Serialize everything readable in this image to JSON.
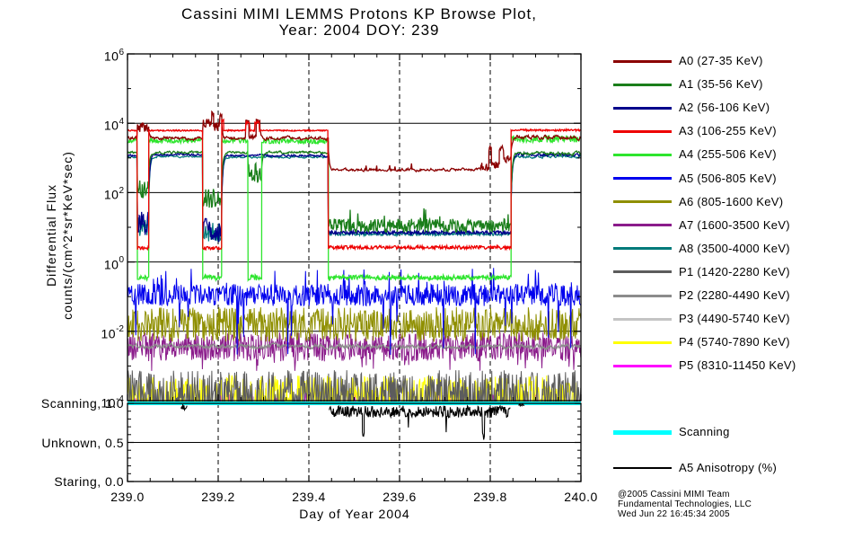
{
  "title": {
    "line1": "Cassini MIMI LEMMS Protons KP Browse Plot,",
    "line2": "Year: 2004 DOY: 239"
  },
  "axes": {
    "x": {
      "label": "Day of Year 2004",
      "tick_labels": [
        "239.0",
        "239.2",
        "239.4",
        "239.6",
        "239.8",
        "240.0"
      ],
      "tick_values": [
        239.0,
        239.2,
        239.4,
        239.6,
        239.8,
        240.0
      ],
      "minor_step": 0.05,
      "range": [
        239.0,
        240.0
      ]
    },
    "y": {
      "label_line1": "Differential Flux",
      "label_line2": "counts/(cm^2*sr*KeV*sec)",
      "major_exponents": [
        6,
        4,
        2,
        0,
        -2,
        -4
      ],
      "minor_exponents": [
        5,
        3,
        1,
        -1,
        -3
      ],
      "scale": "log10"
    },
    "panel": {
      "tick_labels": [
        {
          "text": "Scanning, 1.0",
          "value": 1.0
        },
        {
          "text": "Unknown, 0.5",
          "value": 0.5
        },
        {
          "text": "Staring, 0.0",
          "value": 0.0
        }
      ],
      "minor_step": 0.1
    }
  },
  "legend": {
    "items": [
      {
        "id": "A0",
        "label": "A0 (27-35 KeV)",
        "color": "#8B0000"
      },
      {
        "id": "A1",
        "label": "A1 (35-56 KeV)",
        "color": "#1B7E1B"
      },
      {
        "id": "A2",
        "label": "A2 (56-106 KeV)",
        "color": "#00008B"
      },
      {
        "id": "A3",
        "label": "A3 (106-255 KeV)",
        "color": "#EE0000"
      },
      {
        "id": "A4",
        "label": "A4 (255-506 KeV)",
        "color": "#2EE52E"
      },
      {
        "id": "A5",
        "label": "A5 (506-805 KeV)",
        "color": "#0000EE"
      },
      {
        "id": "A6",
        "label": "A6 (805-1600 KeV)",
        "color": "#8F8F00"
      },
      {
        "id": "A7",
        "label": "A7 (1600-3500 KeV)",
        "color": "#8B1C8B"
      },
      {
        "id": "A8",
        "label": "A8 (3500-4000 KeV)",
        "color": "#007A7A"
      },
      {
        "id": "P1",
        "label": "P1 (1420-2280 KeV)",
        "color": "#5C5C5C"
      },
      {
        "id": "P2",
        "label": "P2 (2280-4490 KeV)",
        "color": "#8C8C8C"
      },
      {
        "id": "P3",
        "label": "P3 (4490-5740 KeV)",
        "color": "#C4C4C4"
      },
      {
        "id": "P4",
        "label": "P4 (5740-7890 KeV)",
        "color": "#FFFF00"
      },
      {
        "id": "P5",
        "label": "P5 (8310-11450 KeV)",
        "color": "#FF00FF"
      }
    ],
    "scanning": {
      "label": "Scanning",
      "color": "#00FFFF"
    },
    "anisotropy": {
      "label": "A5 Anisotropy (%)",
      "color": "#000000"
    }
  },
  "footer": {
    "line1": "@2005 Cassini MIMI Team",
    "line2": "Fundamental Technologies, LLC",
    "line3": "Wed Jun 22 16:45:34 2005"
  },
  "chart_data": {
    "type": "line",
    "title": "Cassini MIMI LEMMS Protons KP Browse Plot, Year: 2004 DOY: 239",
    "xlabel": "Day of Year 2004",
    "ylabel": "Differential Flux counts/(cm^2*sr*KeV*sec)",
    "x_range": [
      239.0,
      240.0
    ],
    "y_range_log10": [
      -4,
      6
    ],
    "x_gridlines_dashed": [
      239.2,
      239.4,
      239.6,
      239.8
    ],
    "y_gridlines_log10": [
      4,
      2,
      0,
      -2
    ],
    "panel_gridline": 0.5,
    "level_units": "log10 of differential flux",
    "series": [
      {
        "name": "P5 (8310-11450 KeV)",
        "color": "#FF00FF",
        "type": "comb",
        "base": -4.07,
        "density": 0.12,
        "mag": 0.3
      },
      {
        "name": "P3 (4490-5740 KeV)",
        "color": "#C4C4C4",
        "type": "comb",
        "base": -4.07,
        "density": 0.22,
        "mag": 0.55
      },
      {
        "name": "P4 (5740-7890 KeV)",
        "color": "#FFFF00",
        "type": "comb",
        "base": -4.07,
        "density": 0.5,
        "mag": 0.8
      },
      {
        "name": "P1 (1420-2280 KeV)",
        "color": "#5C5C5C",
        "type": "comb",
        "base": -4.07,
        "density": 0.55,
        "mag": 0.95
      },
      {
        "name": "A7 (1600-3500 KeV)",
        "color": "#8B1C8B",
        "type": "line",
        "width": 1,
        "segs": [
          {
            "x0": 239.0,
            "x1": 240.0,
            "lev": -2.45,
            "amp": 0.42,
            "down_p": 0.05,
            "down": 0.7
          }
        ]
      },
      {
        "name": "A6 (805-1600 KeV)",
        "color": "#8F8F00",
        "type": "line",
        "width": 1,
        "segs": [
          {
            "x0": 239.0,
            "x1": 240.0,
            "lev": -1.8,
            "amp": 0.5
          }
        ]
      },
      {
        "name": "P2 (2280-4490 KeV)",
        "color": "#8C8C8C",
        "type": "line",
        "width": 1.3,
        "segs": [
          {
            "x0": 239.0,
            "x1": 240.0,
            "lev": -2.44,
            "amp": 0.07,
            "smooth": true
          }
        ]
      },
      {
        "name": "A5 (506-805 KeV)",
        "color": "#0000EE",
        "type": "line",
        "width": 1,
        "segs": [
          {
            "x0": 239.0,
            "x1": 240.0,
            "lev": -0.95,
            "amp": 0.32,
            "spike_p": 0.05,
            "spike_up": 0.85,
            "down_p": 0.02,
            "down": 1.8
          }
        ]
      },
      {
        "name": "A8 (3500-4000 KeV)",
        "color": "#007A7A",
        "type": "line",
        "width": 1.2,
        "segs": [
          {
            "x0": 239.0,
            "x1": 239.022,
            "lev": 3.02,
            "amp": 0.03,
            "smooth": true
          },
          {
            "x0": 239.022,
            "x1": 239.047,
            "lev": 1.05,
            "amp": 0.3
          },
          {
            "x0": 239.047,
            "x1": 239.166,
            "lev": 3.04,
            "amp": 0.03,
            "smooth": true
          },
          {
            "x0": 239.166,
            "x1": 239.208,
            "lev": 0.85,
            "amp": 0.3
          },
          {
            "x0": 239.208,
            "x1": 239.443,
            "lev": 3.02,
            "amp": 0.03,
            "smooth": true
          },
          {
            "x0": 239.443,
            "x1": 239.846,
            "lev": 0.8,
            "amp": 0.04
          },
          {
            "x0": 239.846,
            "x1": 240.0,
            "lev": 3.04,
            "amp": 0.04,
            "smooth": true
          }
        ]
      },
      {
        "name": "A2 (56-106 KeV)",
        "color": "#00008B",
        "type": "line",
        "width": 1.3,
        "segs": [
          {
            "x0": 239.0,
            "x1": 239.022,
            "lev": 3.07,
            "amp": 0.035,
            "smooth": true
          },
          {
            "x0": 239.022,
            "x1": 239.047,
            "lev": 1.1,
            "amp": 0.35
          },
          {
            "x0": 239.047,
            "x1": 239.166,
            "lev": 3.09,
            "amp": 0.035,
            "smooth": true
          },
          {
            "x0": 239.166,
            "x1": 239.208,
            "lev": 0.9,
            "amp": 0.35
          },
          {
            "x0": 239.208,
            "x1": 239.443,
            "lev": 3.07,
            "amp": 0.035,
            "smooth": true
          },
          {
            "x0": 239.443,
            "x1": 239.846,
            "lev": 0.85,
            "amp": 0.05
          },
          {
            "x0": 239.846,
            "x1": 240.0,
            "lev": 3.09,
            "amp": 0.05,
            "smooth": true
          }
        ]
      },
      {
        "name": "A1 (35-56 KeV)",
        "color": "#1B7E1B",
        "type": "line",
        "width": 1.3,
        "segs": [
          {
            "x0": 239.0,
            "x1": 239.022,
            "lev": 3.16,
            "amp": 0.04,
            "smooth": true
          },
          {
            "x0": 239.022,
            "x1": 239.047,
            "lev": 2.1,
            "amp": 0.28
          },
          {
            "x0": 239.047,
            "x1": 239.166,
            "lev": 3.16,
            "amp": 0.04,
            "smooth": true
          },
          {
            "x0": 239.166,
            "x1": 239.208,
            "lev": 1.85,
            "amp": 0.3
          },
          {
            "x0": 239.208,
            "x1": 239.266,
            "lev": 3.16,
            "amp": 0.04,
            "smooth": true
          },
          {
            "x0": 239.266,
            "x1": 239.296,
            "lev": 2.55,
            "amp": 0.3
          },
          {
            "x0": 239.296,
            "x1": 239.443,
            "lev": 3.16,
            "amp": 0.04,
            "smooth": true
          },
          {
            "x0": 239.443,
            "x1": 239.846,
            "lev": 1.05,
            "amp": 0.2,
            "spike_p": 0.05,
            "spike_up": 0.5
          },
          {
            "x0": 239.846,
            "x1": 240.0,
            "lev": 3.13,
            "amp": 0.05,
            "smooth": true
          }
        ]
      },
      {
        "name": "A4 (255-506 KeV)",
        "color": "#2EE52E",
        "type": "line",
        "width": 1.3,
        "segs": [
          {
            "x0": 239.0,
            "x1": 239.022,
            "lev": 3.5,
            "amp": 0.07
          },
          {
            "x0": 239.022,
            "x1": 239.047,
            "lev": -0.45,
            "amp": 0.08
          },
          {
            "x0": 239.047,
            "x1": 239.166,
            "lev": 3.5,
            "amp": 0.07
          },
          {
            "x0": 239.166,
            "x1": 239.208,
            "lev": -0.45,
            "amp": 0.08
          },
          {
            "x0": 239.208,
            "x1": 239.266,
            "lev": 3.5,
            "amp": 0.07
          },
          {
            "x0": 239.266,
            "x1": 239.296,
            "lev": -0.45,
            "amp": 0.08
          },
          {
            "x0": 239.296,
            "x1": 239.443,
            "lev": 3.48,
            "amp": 0.07
          },
          {
            "x0": 239.443,
            "x1": 239.846,
            "lev": -0.45,
            "amp": 0.07
          },
          {
            "x0": 239.846,
            "x1": 240.0,
            "lev": 3.55,
            "amp": 0.1
          }
        ]
      },
      {
        "name": "A0 (27-35 KeV)",
        "color": "#8B0000",
        "type": "line",
        "width": 1.3,
        "segs": [
          {
            "x0": 239.0,
            "x1": 239.022,
            "lev": 3.57,
            "amp": 0.05,
            "smooth": true
          },
          {
            "x0": 239.022,
            "x1": 239.047,
            "lev": 3.88,
            "amp": 0.14
          },
          {
            "x0": 239.047,
            "x1": 239.166,
            "lev": 3.57,
            "amp": 0.05,
            "smooth": true
          },
          {
            "x0": 239.166,
            "x1": 239.186,
            "lev": 3.95,
            "amp": 0.18
          },
          {
            "x0": 239.186,
            "x1": 239.19,
            "lev": 4.3,
            "amp": 0.06
          },
          {
            "x0": 239.19,
            "x1": 239.204,
            "lev": 3.9,
            "amp": 0.12
          },
          {
            "x0": 239.204,
            "x1": 239.208,
            "lev": 4.25,
            "amp": 0.08
          },
          {
            "x0": 239.208,
            "x1": 239.261,
            "lev": 3.57,
            "amp": 0.05,
            "smooth": true
          },
          {
            "x0": 239.261,
            "x1": 239.268,
            "lev": 4.08,
            "amp": 0.08
          },
          {
            "x0": 239.268,
            "x1": 239.284,
            "lev": 3.6,
            "amp": 0.06
          },
          {
            "x0": 239.284,
            "x1": 239.292,
            "lev": 4.1,
            "amp": 0.08
          },
          {
            "x0": 239.292,
            "x1": 239.443,
            "lev": 3.57,
            "amp": 0.05,
            "smooth": true
          },
          {
            "x0": 239.443,
            "x1": 239.78,
            "lev": 2.66,
            "amp": 0.045,
            "smooth": true,
            "spike_p": 0.025,
            "spike_up": 0.22
          },
          {
            "x0": 239.78,
            "x1": 239.797,
            "lev": 2.75,
            "amp": 0.12
          },
          {
            "x0": 239.797,
            "x1": 239.803,
            "lev": 3.26,
            "amp": 0.08
          },
          {
            "x0": 239.803,
            "x1": 239.82,
            "lev": 2.8,
            "amp": 0.1
          },
          {
            "x0": 239.82,
            "x1": 239.83,
            "lev": 3.28,
            "amp": 0.08
          },
          {
            "x0": 239.83,
            "x1": 239.846,
            "lev": 2.95,
            "amp": 0.12
          },
          {
            "x0": 239.846,
            "x1": 240.0,
            "lev": 3.6,
            "amp": 0.06,
            "smooth": true
          }
        ]
      },
      {
        "name": "A3 (106-255 KeV)",
        "color": "#EE0000",
        "type": "line",
        "width": 1.3,
        "segs": [
          {
            "x0": 239.0,
            "x1": 239.022,
            "lev": 3.79,
            "amp": 0.02
          },
          {
            "x0": 239.022,
            "x1": 239.047,
            "lev": 0.4,
            "amp": 0.05
          },
          {
            "x0": 239.047,
            "x1": 239.166,
            "lev": 3.79,
            "amp": 0.02
          },
          {
            "x0": 239.166,
            "x1": 239.208,
            "lev": 0.4,
            "amp": 0.05
          },
          {
            "x0": 239.208,
            "x1": 239.212,
            "lev": 4.1,
            "amp": 0.05
          },
          {
            "x0": 239.212,
            "x1": 239.261,
            "lev": 3.79,
            "amp": 0.02
          },
          {
            "x0": 239.261,
            "x1": 239.27,
            "lev": 4.02,
            "amp": 0.04
          },
          {
            "x0": 239.27,
            "x1": 239.281,
            "lev": 3.79,
            "amp": 0.02
          },
          {
            "x0": 239.281,
            "x1": 239.291,
            "lev": 4.02,
            "amp": 0.04
          },
          {
            "x0": 239.291,
            "x1": 239.443,
            "lev": 3.79,
            "amp": 0.02
          },
          {
            "x0": 239.443,
            "x1": 239.846,
            "lev": 0.42,
            "amp": 0.05
          },
          {
            "x0": 239.846,
            "x1": 240.0,
            "lev": 3.8,
            "amp": 0.03
          }
        ]
      }
    ],
    "anisotropy_panel": {
      "y_range": [
        0.0,
        1.0
      ],
      "scanning_line": {
        "value": 1.0,
        "x0": 239.0,
        "x1": 240.0,
        "color": "#00FFFF"
      },
      "a5_anisotropy": {
        "color": "#000000",
        "segments": [
          {
            "gap": true,
            "x0": 239.118,
            "x1": 239.132,
            "lev": 0.95,
            "amp": 0.045
          },
          {
            "gap": true,
            "x0": 239.445,
            "x1": 239.518,
            "lev": 0.895,
            "amp": 0.075
          },
          {
            "x0": 239.518,
            "x1": 239.522,
            "lev": 0.6,
            "amp": 0.05
          },
          {
            "x0": 239.522,
            "x1": 239.783,
            "lev": 0.895,
            "amp": 0.075,
            "down_p": 0.015,
            "down": 0.3
          },
          {
            "x0": 239.783,
            "x1": 239.788,
            "lev": 0.58,
            "amp": 0.05
          },
          {
            "x0": 239.788,
            "x1": 239.845,
            "lev": 0.89,
            "amp": 0.08
          },
          {
            "gap": true,
            "x0": 239.862,
            "x1": 239.876,
            "lev": 0.97,
            "amp": 0.03
          }
        ]
      }
    }
  }
}
